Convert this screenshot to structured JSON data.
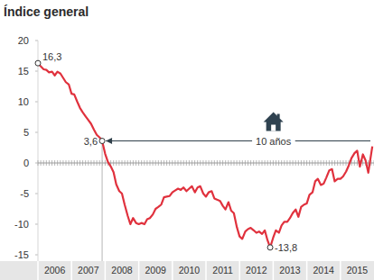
{
  "chart_data": {
    "type": "line",
    "title": "Índice general",
    "color": "#e0313d",
    "xlim": [
      2006,
      2016
    ],
    "ylim": [
      -15,
      20
    ],
    "yticks": [
      -15,
      -10,
      -5,
      0,
      5,
      10,
      15,
      20
    ],
    "xticks": [
      {
        "value": 2006.5,
        "label": "2006"
      },
      {
        "value": 2007.5,
        "label": "2007"
      },
      {
        "value": 2008.5,
        "label": "2008"
      },
      {
        "value": 2009.5,
        "label": "2009"
      },
      {
        "value": 2010.5,
        "label": "2010"
      },
      {
        "value": 2011.5,
        "label": "2011"
      },
      {
        "value": 2012.5,
        "label": "2012"
      },
      {
        "value": 2013.5,
        "label": "2013"
      },
      {
        "value": 2014.5,
        "label": "2014"
      },
      {
        "value": 2015.5,
        "label": "2015"
      }
    ],
    "grid": false,
    "x": [
      2006.0,
      2006.08,
      2006.17,
      2006.25,
      2006.33,
      2006.42,
      2006.5,
      2006.58,
      2006.67,
      2006.75,
      2006.83,
      2006.92,
      2007.0,
      2007.08,
      2007.17,
      2007.25,
      2007.33,
      2007.42,
      2007.5,
      2007.58,
      2007.67,
      2007.75,
      2007.83,
      2007.91,
      2008.0,
      2008.08,
      2008.17,
      2008.25,
      2008.33,
      2008.42,
      2008.5,
      2008.58,
      2008.67,
      2008.75,
      2008.83,
      2008.92,
      2009.0,
      2009.08,
      2009.17,
      2009.25,
      2009.33,
      2009.42,
      2009.5,
      2009.58,
      2009.67,
      2009.75,
      2009.83,
      2009.92,
      2010.0,
      2010.08,
      2010.17,
      2010.25,
      2010.33,
      2010.42,
      2010.5,
      2010.58,
      2010.67,
      2010.75,
      2010.83,
      2010.92,
      2011.0,
      2011.08,
      2011.17,
      2011.25,
      2011.33,
      2011.42,
      2011.5,
      2011.58,
      2011.67,
      2011.75,
      2011.83,
      2011.92,
      2012.0,
      2012.08,
      2012.17,
      2012.25,
      2012.33,
      2012.42,
      2012.5,
      2012.58,
      2012.67,
      2012.75,
      2012.83,
      2012.91,
      2013.0,
      2013.08,
      2013.17,
      2013.25,
      2013.33,
      2013.42,
      2013.5,
      2013.58,
      2013.67,
      2013.75,
      2013.83,
      2013.92,
      2014.0,
      2014.08,
      2014.17,
      2014.25,
      2014.33,
      2014.42,
      2014.5,
      2014.58,
      2014.67,
      2014.75,
      2014.83,
      2014.92,
      2015.0,
      2015.08,
      2015.17,
      2015.25,
      2015.33,
      2015.42,
      2015.5,
      2015.58,
      2015.67,
      2015.75,
      2015.83,
      2015.95
    ],
    "values": [
      16.3,
      15.8,
      15.3,
      15.2,
      14.8,
      14.9,
      14.3,
      14.9,
      14.6,
      13.9,
      13.2,
      12.8,
      11.3,
      11.2,
      10.0,
      9.0,
      8.3,
      7.6,
      7.0,
      6.4,
      5.4,
      4.6,
      4.2,
      3.6,
      1.5,
      0.2,
      -0.6,
      -1.5,
      -3.5,
      -4.6,
      -5.0,
      -6.8,
      -8.6,
      -10.0,
      -9.0,
      -9.8,
      -10.0,
      -9.8,
      -10.0,
      -9.2,
      -9.0,
      -8.4,
      -7.5,
      -7.2,
      -6.8,
      -5.6,
      -5.5,
      -5.4,
      -4.8,
      -4.5,
      -4.2,
      -4.4,
      -4.0,
      -4.6,
      -4.2,
      -3.8,
      -4.8,
      -4.0,
      -3.8,
      -5.0,
      -5.5,
      -4.8,
      -4.6,
      -5.8,
      -6.0,
      -6.2,
      -7.0,
      -7.6,
      -6.4,
      -7.8,
      -8.2,
      -10.5,
      -12.0,
      -12.4,
      -11.2,
      -10.8,
      -10.6,
      -11.0,
      -11.4,
      -11.2,
      -11.6,
      -11.0,
      -12.6,
      -13.8,
      -12.2,
      -11.0,
      -11.4,
      -10.2,
      -9.6,
      -9.6,
      -9.0,
      -8.2,
      -7.6,
      -8.8,
      -7.2,
      -6.8,
      -6.6,
      -5.2,
      -4.8,
      -3.0,
      -2.6,
      -3.6,
      -3.4,
      -2.4,
      -1.2,
      -1.0,
      -3.0,
      -2.6,
      -2.6,
      -2.2,
      -1.4,
      -0.4,
      0.8,
      1.6,
      2.0,
      -0.6,
      1.4,
      0.4,
      -1.6,
      2.7
    ],
    "annotations": [
      {
        "text": "16,3",
        "x": 2006.0,
        "y": 16.3
      },
      {
        "text": "3,6",
        "x": 2007.91,
        "y": 3.6
      },
      {
        "text": "-13,8",
        "x": 2012.91,
        "y": -13.8
      }
    ],
    "span_annotation": {
      "text": "10 años",
      "from": 2007.91,
      "to": 2016,
      "y": 3.6
    }
  }
}
